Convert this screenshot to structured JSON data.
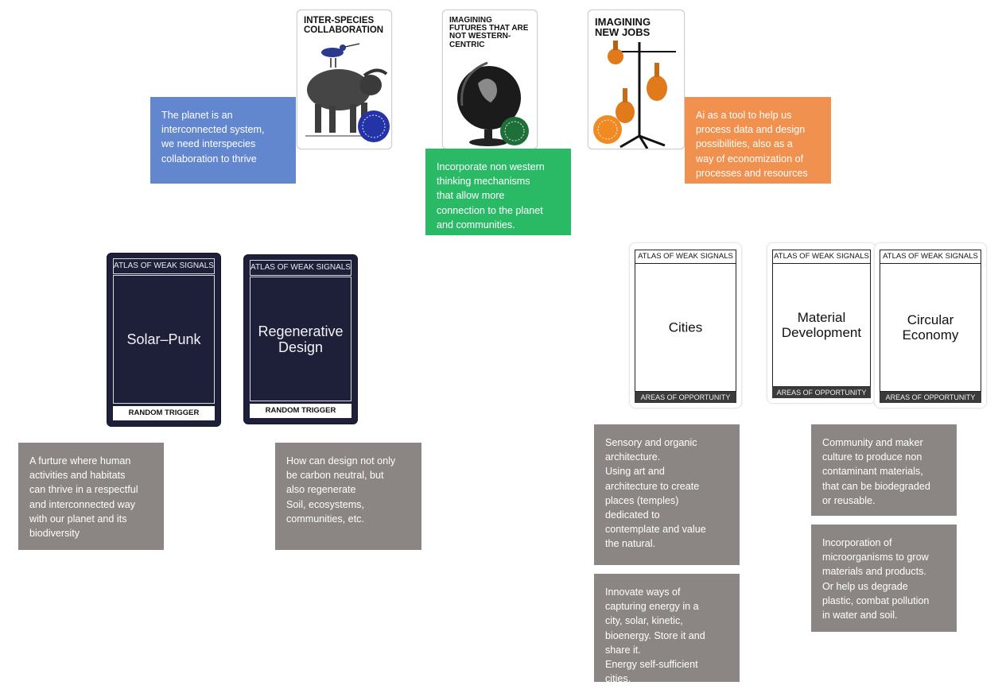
{
  "top_cards": [
    {
      "title": "INTER-SPECIES\nCOLLABORATION"
    },
    {
      "title": "IMAGINING\nFUTURES THAT ARE\nNOT WESTERN-\nCENTRIC"
    },
    {
      "title": "IMAGINING\nNEW JOBS"
    }
  ],
  "top_notes": [
    {
      "text": "The planet is an\ninterconnected system,\nwe need interspecies\ncollaboration to thrive",
      "color": "#6387cf"
    },
    {
      "text": "Incorporate non western\nthinking mechanisms\nthat allow more\nconnection to the planet\nand communities.",
      "color": "#2aba66"
    },
    {
      "text": "Ai as a tool to help us\nprocess data and design\npossibilities, also as a\nway of economization of\nprocesses and resources",
      "color": "#f0914f"
    }
  ],
  "trigger_cards": [
    {
      "header": "ATLAS OF WEAK SIGNALS",
      "label": "Solar–Punk",
      "footer": "RANDOM TRIGGER"
    },
    {
      "header": "ATLAS OF WEAK SIGNALS",
      "label": "Regenerative\nDesign",
      "footer": "RANDOM TRIGGER"
    }
  ],
  "opportunity_cards": [
    {
      "header": "ATLAS OF WEAK SIGNALS",
      "label": "Cities",
      "footer": "AREAS OF OPPORTUNITY"
    },
    {
      "header": "ATLAS OF WEAK SIGNALS",
      "label": "Material\nDevelopment",
      "footer": "AREAS OF OPPORTUNITY"
    },
    {
      "header": "ATLAS OF WEAK SIGNALS",
      "label": "Circular\nEconomy",
      "footer": "AREAS OF OPPORTUNITY"
    }
  ],
  "bottom_notes": [
    {
      "text": "A furture where human\nactivities and habitats\ncan thrive in a respectful\nand interconnected way\nwith our planet and its\nbiodiversity"
    },
    {
      "text": "How can design not only\nbe carbon neutral, but\nalso regenerate\nSoil, ecosystems,\ncommunities, etc."
    },
    {
      "text": "Sensory and organic\narchitecture.\nUsing art and\narchitecture to create\nplaces (temples)\ndedicated to\ncontemplate and value\nthe natural."
    },
    {
      "text": "Innovate ways of\ncapturing energy in a\ncity, solar, kinetic,\nbioenergy.  Store it and\nshare it.\nEnergy self-sufficient\ncities."
    },
    {
      "text": "Community and maker\nculture to produce non\ncontaminant materials,\nthat can be biodegraded\nor reusable."
    },
    {
      "text": "Incorporation of\nmicroorganisms to grow\nmaterials and products.\nOr help us degrade\nplastic, combat pollution\nin water and soil."
    }
  ],
  "colors": {
    "note_grey": "#8b8684",
    "trigger_card": "#1e1f39"
  }
}
